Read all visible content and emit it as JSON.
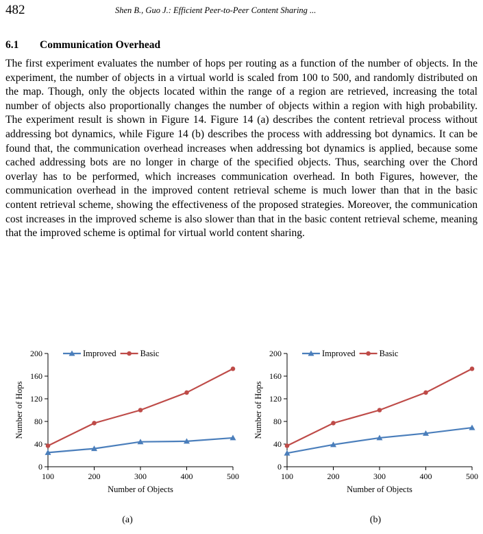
{
  "header": {
    "page_number": "482",
    "running_title": "Shen B., Guo J.: Efficient Peer-to-Peer Content Sharing ..."
  },
  "section": {
    "number": "6.1",
    "title": "Communication Overhead"
  },
  "paragraph": "The first experiment evaluates the number of hops per routing as a function of the number of objects. In the experiment, the number of objects in a virtual world is scaled from 100 to 500, and randomly distributed on the map. Though, only the objects located within the range of a region are retrieved, increasing the total number of objects also proportionally changes the number of objects within a region with high probability. The experiment result is shown in Figure 14. Figure 14 (a) describes the content retrieval process without addressing bot dynamics, while Figure 14 (b) describes the process with addressing bot dynamics. It can be found that, the communication overhead increases when addressing bot dynamics is applied, because some cached addressing bots are no longer in charge of the specified objects. Thus, searching over the Chord overlay has to be performed, which increases communication overhead. In both Figures, however, the communication overhead in the improved content retrieval scheme is much lower than that in the basic content retrieval scheme, showing the effectiveness of the proposed strategies. Moreover, the communication cost increases in the improved scheme is also slower than that in the basic content retrieval scheme, meaning that the improved scheme is optimal for virtual world content sharing.",
  "captions": {
    "a": "(a)",
    "b": "(b)"
  },
  "chart_data": [
    {
      "type": "line",
      "xlabel": "Number of Objects",
      "ylabel": "Number of Hops",
      "x": [
        100,
        200,
        300,
        400,
        500
      ],
      "x_ticks": [
        "100",
        "200",
        "300",
        "400",
        "500"
      ],
      "y_ticks": [
        "0",
        "40",
        "80",
        "120",
        "160",
        "200"
      ],
      "ylim": [
        0,
        200
      ],
      "grid": false,
      "legend_position": "top-left",
      "series": [
        {
          "name": "Improved",
          "values": [
            25,
            32,
            44,
            45,
            51
          ],
          "color": "#4a7ebb",
          "marker": "triangle"
        },
        {
          "name": "Basic",
          "values": [
            37,
            77,
            100,
            131,
            173
          ],
          "color": "#be4b48",
          "marker": "circle"
        }
      ]
    },
    {
      "type": "line",
      "xlabel": "Number of Objects",
      "ylabel": "Number of Hops",
      "x": [
        100,
        200,
        300,
        400,
        500
      ],
      "x_ticks": [
        "100",
        "200",
        "300",
        "400",
        "500"
      ],
      "y_ticks": [
        "0",
        "40",
        "80",
        "120",
        "160",
        "200"
      ],
      "ylim": [
        0,
        200
      ],
      "grid": false,
      "legend_position": "top-left",
      "series": [
        {
          "name": "Improved",
          "values": [
            24,
            39,
            51,
            59,
            69
          ],
          "color": "#4a7ebb",
          "marker": "triangle"
        },
        {
          "name": "Basic",
          "values": [
            37,
            77,
            100,
            131,
            173
          ],
          "color": "#be4b48",
          "marker": "circle"
        }
      ]
    }
  ]
}
